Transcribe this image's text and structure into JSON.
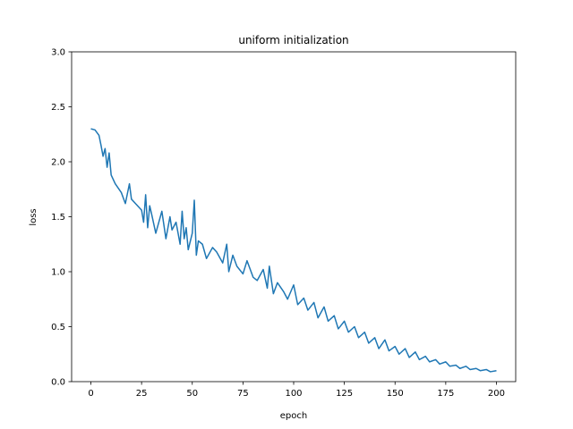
{
  "chart_data": {
    "type": "line",
    "title": "uniform initialization",
    "xlabel": "epoch",
    "ylabel": "loss",
    "xlim": [
      -9.5,
      209.5
    ],
    "ylim": [
      0.0,
      3.0
    ],
    "xticks": [
      0,
      25,
      50,
      75,
      100,
      125,
      150,
      175,
      200
    ],
    "yticks": [
      0.0,
      0.5,
      1.0,
      1.5,
      2.0,
      2.5,
      3.0
    ],
    "xtick_labels": [
      "0",
      "25",
      "50",
      "75",
      "100",
      "125",
      "150",
      "175",
      "200"
    ],
    "ytick_labels": [
      "0.0",
      "0.5",
      "1.0",
      "1.5",
      "2.0",
      "2.5",
      "3.0"
    ],
    "grid": false,
    "legend": "none",
    "series": [
      {
        "color": "#1f77b4",
        "x": [
          0,
          2,
          4,
          5,
          6,
          7,
          8,
          9,
          10,
          12,
          15,
          17,
          19,
          20,
          22,
          25,
          26,
          27,
          28,
          29,
          30,
          32,
          35,
          37,
          39,
          40,
          42,
          44,
          45,
          46,
          47,
          48,
          50,
          51,
          52,
          53,
          55,
          57,
          60,
          62,
          65,
          67,
          68,
          70,
          72,
          75,
          77,
          80,
          82,
          85,
          87,
          88,
          90,
          92,
          95,
          97,
          100,
          102,
          105,
          107,
          110,
          112,
          115,
          117,
          120,
          122,
          125,
          127,
          130,
          132,
          135,
          137,
          140,
          142,
          145,
          147,
          150,
          152,
          155,
          157,
          160,
          162,
          165,
          167,
          170,
          172,
          175,
          177,
          180,
          182,
          185,
          187,
          190,
          192,
          195,
          197,
          200
        ],
        "values": [
          2.3,
          2.29,
          2.24,
          2.15,
          2.05,
          2.12,
          1.95,
          2.08,
          1.88,
          1.8,
          1.72,
          1.62,
          1.8,
          1.66,
          1.62,
          1.56,
          1.45,
          1.7,
          1.4,
          1.6,
          1.52,
          1.35,
          1.55,
          1.3,
          1.5,
          1.38,
          1.45,
          1.25,
          1.55,
          1.3,
          1.4,
          1.2,
          1.35,
          1.65,
          1.15,
          1.28,
          1.25,
          1.12,
          1.22,
          1.18,
          1.08,
          1.25,
          1.0,
          1.15,
          1.05,
          0.98,
          1.1,
          0.95,
          0.92,
          1.02,
          0.85,
          1.05,
          0.8,
          0.9,
          0.82,
          0.75,
          0.88,
          0.7,
          0.76,
          0.65,
          0.72,
          0.58,
          0.68,
          0.55,
          0.6,
          0.48,
          0.55,
          0.45,
          0.5,
          0.4,
          0.45,
          0.35,
          0.4,
          0.3,
          0.38,
          0.28,
          0.32,
          0.25,
          0.3,
          0.22,
          0.27,
          0.2,
          0.23,
          0.18,
          0.2,
          0.16,
          0.18,
          0.14,
          0.15,
          0.12,
          0.14,
          0.11,
          0.12,
          0.1,
          0.11,
          0.09,
          0.1
        ]
      }
    ]
  }
}
